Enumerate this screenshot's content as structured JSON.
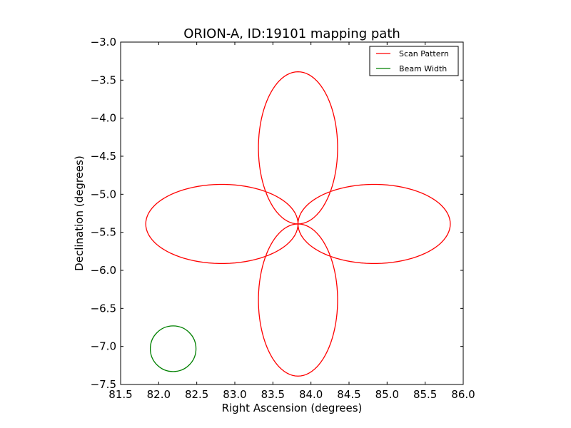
{
  "chart_data": {
    "type": "line",
    "title": "ORION-A, ID:19101 mapping path",
    "xlabel": "Right Ascension (degrees)",
    "ylabel": "Declination (degrees)",
    "xlim": [
      81.5,
      86.0
    ],
    "ylim": [
      -7.5,
      -3.0
    ],
    "xticks": [
      "81.5",
      "82.0",
      "82.5",
      "83.0",
      "83.5",
      "84.0",
      "84.5",
      "85.0",
      "85.5",
      "86.0"
    ],
    "yticks": [
      "−3.0",
      "−3.5",
      "−4.0",
      "−4.5",
      "−5.0",
      "−5.5",
      "−6.0",
      "−6.5",
      "−7.0",
      "−7.5"
    ],
    "grid": false,
    "legend_position": "top-right",
    "series": [
      {
        "name": "Scan Pattern",
        "color": "#ff0000",
        "center": [
          83.83,
          -5.39
        ],
        "petal_length": 2.0,
        "petal_width_factor": 0.52,
        "petals_at_angles_deg": [
          0,
          90,
          180,
          270
        ],
        "gap": [
          [
            85.83,
            -5.4
          ],
          [
            85.81,
            -5.53
          ]
        ]
      },
      {
        "name": "Beam Width",
        "color": "#008000",
        "center": [
          82.19,
          -7.03
        ],
        "radius_deg": 0.3
      }
    ]
  }
}
